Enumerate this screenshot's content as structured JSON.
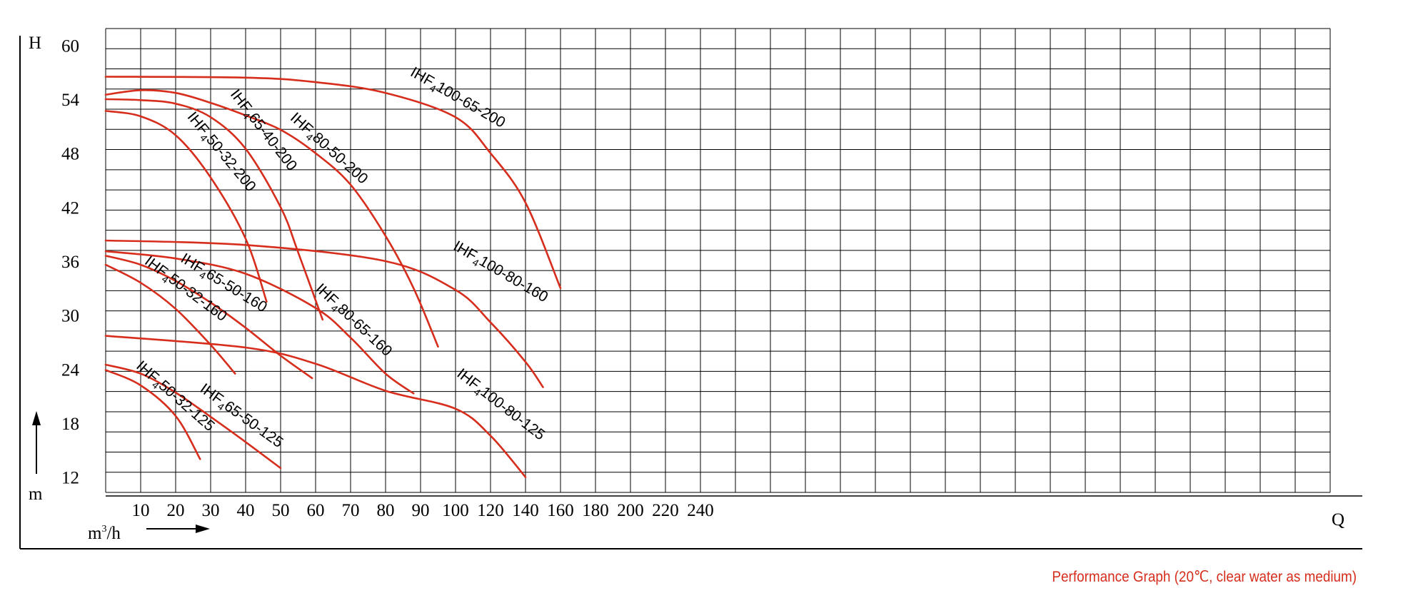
{
  "caption": "Performance Graph (20℃, clear water as medium)",
  "chart_data": {
    "type": "line",
    "xlabel": "Q",
    "ylabel": "H",
    "y_unit": "m",
    "x_unit_base": "m",
    "x_unit_exp": "3",
    "x_unit_rest": "/h",
    "x_ticks": [
      10,
      20,
      30,
      40,
      50,
      60,
      70,
      80,
      90,
      100,
      120,
      140,
      160,
      180,
      200,
      220,
      240
    ],
    "y_ticks": [
      12,
      18,
      24,
      30,
      36,
      42,
      48,
      54,
      60
    ],
    "grid": true,
    "curve_color": "#d62d1c",
    "series": [
      {
        "name": "IHF4100-65-200",
        "label_pre": "IHF",
        "label_sub": "4",
        "label_post": "100-65-200",
        "points": [
          [
            0,
            56.5
          ],
          [
            40,
            56.4
          ],
          [
            60,
            55.9
          ],
          [
            80,
            54.7
          ],
          [
            100,
            52.0
          ],
          [
            120,
            48.0
          ],
          [
            140,
            42.5
          ],
          [
            160,
            33.0
          ]
        ]
      },
      {
        "name": "IHF480-50-200",
        "label_pre": "IHF",
        "label_sub": "4",
        "label_post": "80-50-200",
        "points": [
          [
            0,
            54.5
          ],
          [
            10,
            55
          ],
          [
            20,
            54.7
          ],
          [
            30,
            53.6
          ],
          [
            40,
            52.2
          ],
          [
            50,
            50.6
          ],
          [
            60,
            48.0
          ],
          [
            70,
            44.5
          ],
          [
            80,
            38.8
          ],
          [
            88,
            33.0
          ],
          [
            95,
            26.5
          ]
        ]
      },
      {
        "name": "IHF465-40-200",
        "label_pre": "IHF",
        "label_sub": "4",
        "label_post": "65-40-200",
        "points": [
          [
            0,
            54
          ],
          [
            10,
            53.9
          ],
          [
            20,
            53.5
          ],
          [
            30,
            52
          ],
          [
            40,
            48.5
          ],
          [
            50,
            42
          ],
          [
            55,
            37
          ],
          [
            62,
            29.5
          ]
        ]
      },
      {
        "name": "IHF450-32-200",
        "label_pre": "IHF",
        "label_sub": "4",
        "label_post": "50-32-200",
        "points": [
          [
            0,
            52.7
          ],
          [
            10,
            52.1
          ],
          [
            20,
            50.0
          ],
          [
            30,
            45.3
          ],
          [
            40,
            38.5
          ],
          [
            46,
            31.5
          ]
        ]
      },
      {
        "name": "IHF4100-80-160",
        "label_pre": "IHF",
        "label_sub": "4",
        "label_post": "100-80-160",
        "points": [
          [
            0,
            38.3
          ],
          [
            40,
            37.8
          ],
          [
            80,
            36.0
          ],
          [
            100,
            32.8
          ],
          [
            120,
            29.2
          ],
          [
            140,
            24.8
          ],
          [
            150,
            22.0
          ]
        ]
      },
      {
        "name": "IHF480-65-160",
        "label_pre": "IHF",
        "label_sub": "4",
        "label_post": "80-65-160",
        "points": [
          [
            0,
            37.1
          ],
          [
            20,
            36.3
          ],
          [
            40,
            34.6
          ],
          [
            60,
            30.8
          ],
          [
            70,
            27.5
          ],
          [
            80,
            23.5
          ],
          [
            88,
            21.3
          ]
        ]
      },
      {
        "name": "IHF465-50-160",
        "label_pre": "IHF",
        "label_sub": "4",
        "label_post": "65-50-160",
        "points": [
          [
            0,
            36.6
          ],
          [
            10,
            35.6
          ],
          [
            20,
            33.8
          ],
          [
            30,
            31.4
          ],
          [
            40,
            28.6
          ],
          [
            50,
            25.5
          ],
          [
            59,
            23.0
          ]
        ]
      },
      {
        "name": "IHF450-32-160",
        "label_pre": "IHF",
        "label_sub": "4",
        "label_post": "50-32-160",
        "points": [
          [
            0,
            35.6
          ],
          [
            10,
            33.6
          ],
          [
            20,
            30.7
          ],
          [
            30,
            26.7
          ],
          [
            37,
            23.5
          ]
        ]
      },
      {
        "name": "IHF4100-80-125",
        "label_pre": "IHF",
        "label_sub": "4",
        "label_post": "100-80-125",
        "points": [
          [
            0,
            27.7
          ],
          [
            40,
            26.4
          ],
          [
            60,
            24.6
          ],
          [
            80,
            21.6
          ],
          [
            100,
            19.6
          ],
          [
            120,
            16.6
          ],
          [
            140,
            12.0
          ]
        ]
      },
      {
        "name": "IHF465-50-125",
        "label_pre": "IHF",
        "label_sub": "4",
        "label_post": "65-50-125",
        "points": [
          [
            0,
            24.5
          ],
          [
            10,
            23.5
          ],
          [
            20,
            21.4
          ],
          [
            30,
            18.7
          ],
          [
            40,
            15.9
          ],
          [
            50,
            13.0
          ]
        ]
      },
      {
        "name": "IHF450-32-125",
        "label_pre": "IHF",
        "label_sub": "4",
        "label_post": "50-32-125",
        "points": [
          [
            0,
            23.9
          ],
          [
            10,
            22.2
          ],
          [
            20,
            18.8
          ],
          [
            27,
            14.0
          ]
        ]
      }
    ]
  }
}
